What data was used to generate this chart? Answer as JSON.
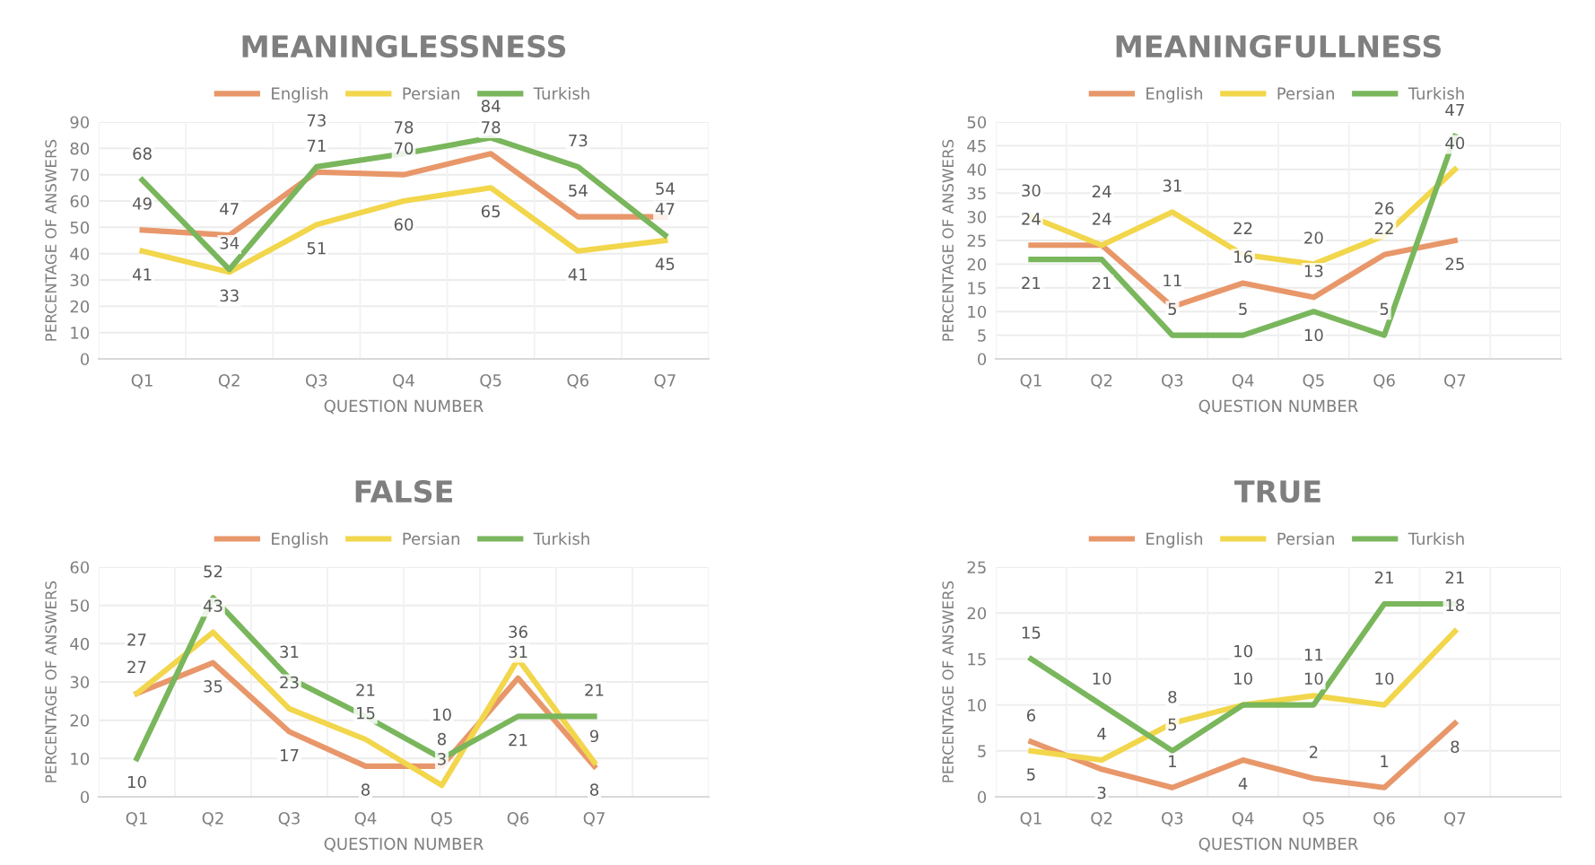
{
  "chart_data": [
    {
      "type": "line",
      "title": "MEANINGLESSNESS",
      "xlabel": "QUESTION NUMBER",
      "ylabel": "PERCENTAGE OF ANSWERS",
      "categories": [
        "Q1",
        "Q2",
        "Q3",
        "Q4",
        "Q5",
        "Q6",
        "Q7"
      ],
      "ylim": [
        0,
        90
      ],
      "yticks": [
        0,
        10,
        20,
        30,
        40,
        50,
        60,
        70,
        80,
        90
      ],
      "grid": true,
      "legend": "top",
      "data_labels": true,
      "marker": "none",
      "line_style": "solid",
      "series": [
        {
          "name": "English",
          "color": "#e8976a",
          "values": [
            49,
            47,
            71,
            70,
            78,
            54,
            54
          ]
        },
        {
          "name": "Persian",
          "color": "#f2d64b",
          "values": [
            41,
            33,
            51,
            60,
            65,
            41,
            45
          ]
        },
        {
          "name": "Turkish",
          "color": "#79b65c",
          "values": [
            68,
            34,
            73,
            78,
            84,
            73,
            47
          ]
        }
      ]
    },
    {
      "type": "line",
      "title": "MEANINGFULLNESS",
      "xlabel": "QUESTION NUMBER",
      "ylabel": "PERCENTAGE OF ANSWERS",
      "categories": [
        "Q1",
        "Q2",
        "Q3",
        "Q4",
        "Q5",
        "Q6",
        "Q7",
        null
      ],
      "ylim": [
        0,
        50
      ],
      "yticks": [
        0,
        5,
        10,
        15,
        20,
        25,
        30,
        35,
        40,
        45,
        50
      ],
      "grid": true,
      "legend": "top",
      "data_labels": true,
      "marker": "none",
      "line_style": "solid",
      "series": [
        {
          "name": "English",
          "color": "#e8976a",
          "values": [
            24,
            24,
            11,
            16,
            13,
            22,
            25,
            null
          ]
        },
        {
          "name": "Persian",
          "color": "#f2d64b",
          "values": [
            30,
            24,
            31,
            22,
            20,
            26,
            40,
            null
          ]
        },
        {
          "name": "Turkish",
          "color": "#79b65c",
          "values": [
            21,
            21,
            5,
            5,
            10,
            5,
            47,
            null
          ]
        }
      ]
    },
    {
      "type": "line",
      "title": "FALSE",
      "xlabel": "QUESTION NUMBER",
      "ylabel": "PERCENTAGE OF ANSWERS",
      "categories": [
        "Q1",
        "Q2",
        "Q3",
        "Q4",
        "Q5",
        "Q6",
        "Q7",
        null
      ],
      "ylim": [
        0,
        60
      ],
      "yticks": [
        0,
        10,
        20,
        30,
        40,
        50,
        60
      ],
      "grid": true,
      "legend": "top",
      "data_labels": true,
      "marker": "none",
      "line_style": "solid",
      "series": [
        {
          "name": "English",
          "color": "#e8976a",
          "values": [
            27,
            35,
            17,
            8,
            8,
            31,
            8,
            null
          ]
        },
        {
          "name": "Persian",
          "color": "#f2d64b",
          "values": [
            27,
            43,
            23,
            15,
            3,
            36,
            9,
            null
          ]
        },
        {
          "name": "Turkish",
          "color": "#79b65c",
          "values": [
            10,
            52,
            31,
            21,
            10,
            21,
            21,
            null
          ]
        }
      ]
    },
    {
      "type": "line",
      "title": "TRUE",
      "xlabel": "QUESTION NUMBER",
      "ylabel": "PERCENTAGE OF ANSWERS",
      "categories": [
        "Q1",
        "Q2",
        "Q3",
        "Q4",
        "Q5",
        "Q6",
        "Q7",
        null
      ],
      "ylim": [
        0,
        25
      ],
      "yticks": [
        0,
        5,
        10,
        15,
        20,
        25
      ],
      "grid": true,
      "legend": "top",
      "data_labels": true,
      "marker": "none",
      "line_style": "solid",
      "series": [
        {
          "name": "English",
          "color": "#e8976a",
          "values": [
            6,
            3,
            1,
            4,
            2,
            1,
            8,
            null
          ]
        },
        {
          "name": "Persian",
          "color": "#f2d64b",
          "values": [
            5,
            4,
            8,
            10,
            11,
            10,
            18,
            null
          ]
        },
        {
          "name": "Turkish",
          "color": "#79b65c",
          "values": [
            15,
            10,
            5,
            10,
            10,
            21,
            21,
            null
          ]
        }
      ]
    }
  ]
}
